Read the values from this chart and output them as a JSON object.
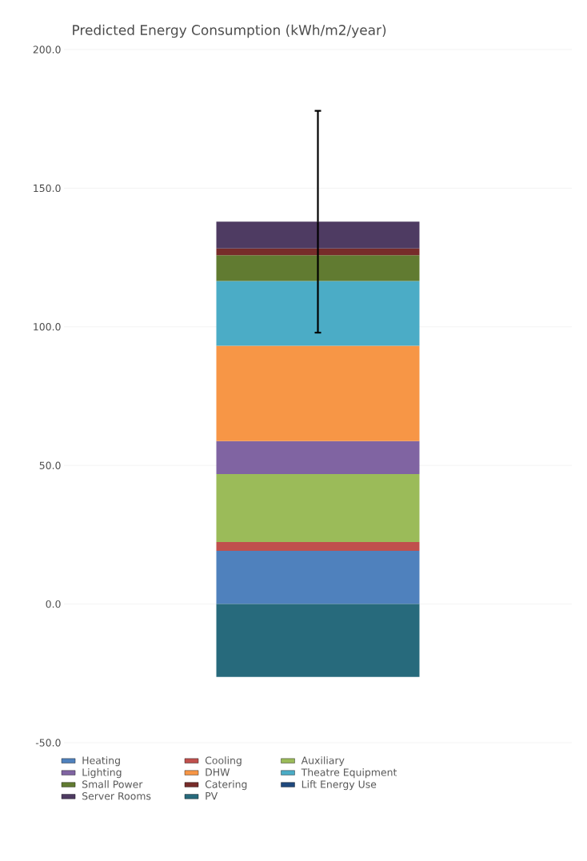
{
  "chart_data": {
    "type": "bar",
    "title": "Predicted Energy Consumption (kWh/m2/year)",
    "stacked": true,
    "categories": [
      null
    ],
    "series": [
      {
        "name": "Heating",
        "color": "#4f81bd",
        "values": [
          19.2
        ]
      },
      {
        "name": "Cooling",
        "color": "#c0504d",
        "values": [
          3.2
        ]
      },
      {
        "name": "Auxiliary",
        "color": "#9bbb59",
        "values": [
          24.5
        ]
      },
      {
        "name": "Lighting",
        "color": "#8064a2",
        "values": [
          11.9
        ]
      },
      {
        "name": "DHW",
        "color": "#f79646",
        "values": [
          34.4
        ]
      },
      {
        "name": "Theatre Equipment",
        "color": "#4bacc6",
        "values": [
          23.3
        ]
      },
      {
        "name": "Small Power",
        "color": "#617b31",
        "values": [
          9.3
        ]
      },
      {
        "name": "Catering",
        "color": "#772c2a",
        "values": [
          2.5
        ]
      },
      {
        "name": "Lift Energy Use",
        "color": "#1f497d",
        "values": [
          0
        ]
      },
      {
        "name": "Server Rooms",
        "color": "#4e3b62",
        "values": [
          9.6
        ],
        "errors": [
          40
        ]
      },
      {
        "name": "PV",
        "color": "#276a7c",
        "values": [
          -26.3
        ]
      }
    ],
    "ylim": [
      -50,
      200
    ],
    "yticks": [
      {
        "value": -50,
        "label": "-50.0"
      },
      {
        "value": 0,
        "label": "0.0"
      },
      {
        "value": 50,
        "label": "50.0"
      },
      {
        "value": 100,
        "label": "100.0"
      },
      {
        "value": 150,
        "label": "150.0"
      },
      {
        "value": 200,
        "label": "200.0"
      }
    ],
    "grid": "y",
    "legend": "bottom"
  }
}
